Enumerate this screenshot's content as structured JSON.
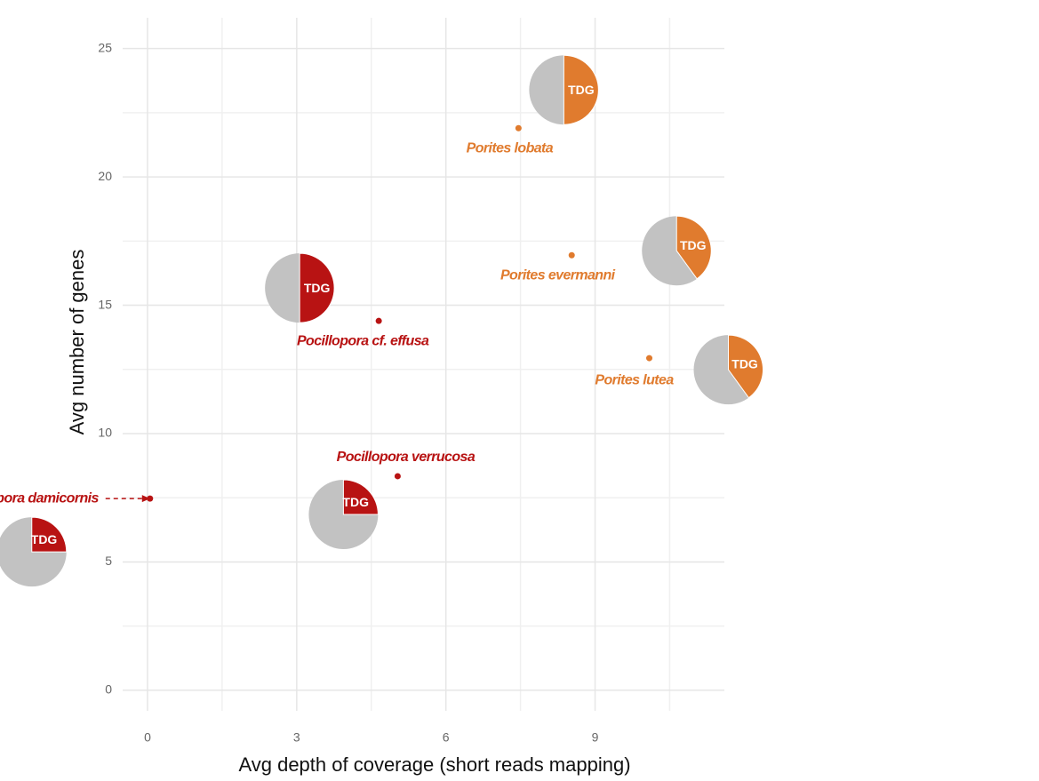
{
  "chart_data": {
    "type": "scatter",
    "x_label": "Avg depth of coverage  (short reads mapping)",
    "y_label": "Avg number of genes",
    "xlim": [
      -0.5,
      11.6
    ],
    "ylim": [
      -0.8,
      26.2
    ],
    "xticks": [
      0,
      3,
      6,
      9
    ],
    "yticks": [
      0,
      5,
      10,
      15,
      20,
      25
    ],
    "xminorticks": [
      1.5,
      4.5,
      7.5,
      10.5
    ],
    "yminorticks": [
      2.5,
      7.5,
      12.5,
      17.5,
      22.5
    ],
    "grid": true,
    "pie_label": "TDG",
    "pie_color": "#c2c2c2",
    "series": [
      {
        "name": "Porites lobata",
        "color": "#e07b2e",
        "x": [
          7.46
        ],
        "values": [
          21.9
        ],
        "pie_share": [
          50
        ]
      },
      {
        "name": "Porites evermanni",
        "color": "#e07b2e",
        "x": [
          8.53
        ],
        "values": [
          16.95
        ],
        "pie_share": [
          40
        ]
      },
      {
        "name": "Porites lutea",
        "color": "#e07b2e",
        "x": [
          10.09
        ],
        "values": [
          12.94
        ],
        "pie_share": [
          40
        ]
      },
      {
        "name": "Pocillopora cf. effusa",
        "color": "#b81313",
        "x": [
          4.65
        ],
        "values": [
          14.39
        ],
        "pie_share": [
          50
        ]
      },
      {
        "name": "Pocillopora verrucosa",
        "color": "#b81313",
        "x": [
          5.03
        ],
        "values": [
          8.34
        ],
        "pie_share": [
          25
        ]
      },
      {
        "name": "Pocillopora damicornis",
        "color": "#b81313",
        "x": [
          0.05
        ],
        "values": [
          7.47
        ],
        "pie_share": [
          25
        ]
      }
    ]
  }
}
